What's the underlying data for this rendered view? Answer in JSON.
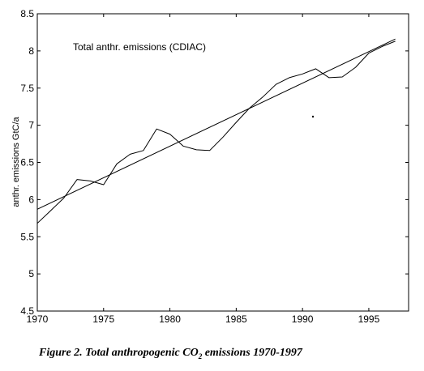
{
  "chart_data": {
    "type": "line",
    "title": "",
    "xlabel": "",
    "ylabel": "anthr. emissions GtC/a",
    "xlim": [
      1970,
      1998
    ],
    "ylim": [
      4.5,
      8.5
    ],
    "xticks": [
      1970,
      1975,
      1980,
      1985,
      1990,
      1995
    ],
    "yticks": [
      4.5,
      5,
      5.5,
      6,
      6.5,
      7,
      7.5,
      8,
      8.5
    ],
    "grid": false,
    "annotation": "Total anthr. emissions (CDIAC)",
    "series": [
      {
        "name": "Total anthr. emissions (CDIAC)",
        "x": [
          1970,
          1971,
          1972,
          1973,
          1974,
          1975,
          1976,
          1977,
          1978,
          1979,
          1980,
          1981,
          1982,
          1983,
          1984,
          1985,
          1986,
          1987,
          1988,
          1989,
          1990,
          1991,
          1992,
          1993,
          1994,
          1995,
          1996,
          1997
        ],
        "y": [
          5.68,
          5.85,
          6.02,
          6.27,
          6.25,
          6.2,
          6.48,
          6.61,
          6.66,
          6.95,
          6.88,
          6.72,
          6.67,
          6.66,
          6.84,
          7.04,
          7.23,
          7.38,
          7.55,
          7.64,
          7.69,
          7.76,
          7.64,
          7.65,
          7.78,
          7.97,
          8.06,
          8.13
        ]
      },
      {
        "x": [
          1970,
          1997
        ],
        "y": [
          5.87,
          8.16
        ]
      }
    ]
  },
  "caption": {
    "prefix": "Figure 2. Total anthropogenic CO",
    "subscript": "2",
    "suffix": " emissions 1970-1997"
  }
}
